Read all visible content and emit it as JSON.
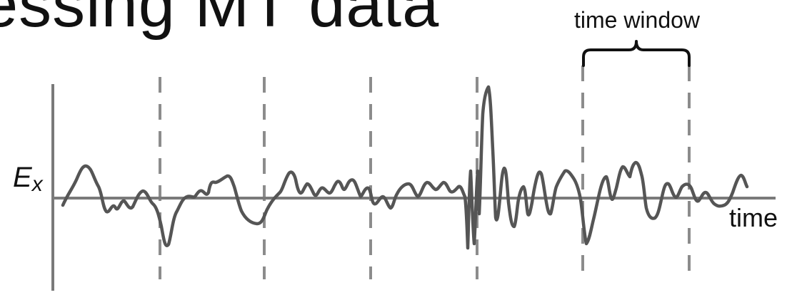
{
  "header": {
    "title": "essing MT data"
  },
  "diagram": {
    "axis_label_y": "E",
    "axis_label_y_subscript": "x",
    "axis_label_x": "time",
    "window_label": "time window",
    "colors": {
      "signal": "#555555",
      "axis": "#7a7a7a",
      "divider": "#8c8c8c",
      "brace": "#111111",
      "text": "#111111"
    }
  }
}
